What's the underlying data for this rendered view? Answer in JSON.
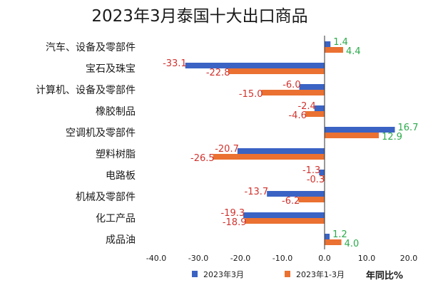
{
  "colors": {
    "series_2023_3": "#3a63c4",
    "series_2023_1_3": "#ea7131",
    "negative_label": "#d2322d",
    "positive_label": "#2cab4c",
    "text": "#1a1a1a",
    "axis": "#333333"
  },
  "chart_data": {
    "type": "bar",
    "orientation": "horizontal",
    "title": "2023年3月泰国十大出口商品",
    "categories": [
      "汽车、设备及零部件",
      "宝石及珠宝",
      "计算机、设备及零部件",
      "橡胶制品",
      "空调机及零部件",
      "塑料树脂",
      "电路板",
      "机械及零部件",
      "化工产品",
      "成品油"
    ],
    "series": [
      {
        "name": "2023年3月",
        "values": [
          1.4,
          -33.1,
          -6.0,
          -2.4,
          16.7,
          -20.7,
          -1.3,
          -13.7,
          -19.3,
          1.2
        ]
      },
      {
        "name": "2023年1-3月",
        "values": [
          4.4,
          -22.8,
          -15.0,
          -4.6,
          12.9,
          -26.5,
          -0.3,
          -6.2,
          -18.9,
          4.0
        ]
      }
    ],
    "xlim": [
      -40,
      20
    ],
    "xticks": [
      "-40.0",
      "-30.0",
      "-20.0",
      "-10.0",
      "0.0",
      "10.0",
      "20.0"
    ],
    "xlabel": "年同比%",
    "ylabel": "",
    "legend_position": "bottom",
    "grid": false
  }
}
